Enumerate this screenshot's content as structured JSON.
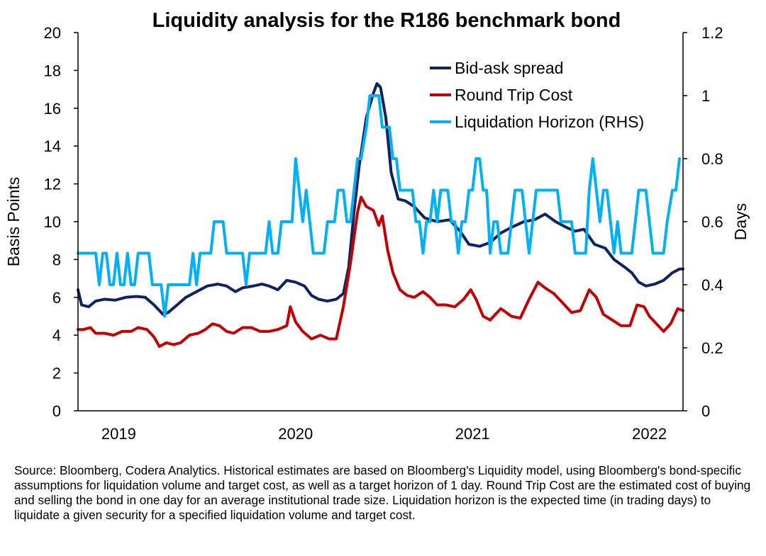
{
  "chart_data": {
    "type": "line",
    "title": "Liquidity analysis for the R186 benchmark bond",
    "ylabel": "Basis Points",
    "y2label": "Days",
    "ylim": [
      0,
      20
    ],
    "y2lim": [
      0,
      1.2
    ],
    "yticks": [
      "0",
      "2",
      "4",
      "6",
      "8",
      "10",
      "12",
      "14",
      "16",
      "18",
      "20"
    ],
    "y2ticks": [
      "0",
      "0.2",
      "0.4",
      "0.6",
      "0.8",
      "1",
      "1.2"
    ],
    "xlim": [
      2018.77,
      2022.19
    ],
    "xticks": [
      {
        "label": "2019",
        "x": 2019.0
      },
      {
        "label": "2020",
        "x": 2020.0
      },
      {
        "label": "2021",
        "x": 2021.0
      },
      {
        "label": "2022",
        "x": 2022.0
      }
    ],
    "grid": false,
    "legend_position": "top-right",
    "series": [
      {
        "name": "Bid-ask spread",
        "axis": "left",
        "color": "#0d2361",
        "points": [
          [
            2018.77,
            6.4
          ],
          [
            2018.79,
            5.6
          ],
          [
            2018.83,
            5.5
          ],
          [
            2018.87,
            5.8
          ],
          [
            2018.92,
            5.9
          ],
          [
            2018.98,
            5.85
          ],
          [
            2019.04,
            6.0
          ],
          [
            2019.1,
            6.05
          ],
          [
            2019.15,
            6.0
          ],
          [
            2019.2,
            5.6
          ],
          [
            2019.25,
            5.1
          ],
          [
            2019.28,
            5.2
          ],
          [
            2019.33,
            5.6
          ],
          [
            2019.38,
            6.0
          ],
          [
            2019.44,
            6.3
          ],
          [
            2019.5,
            6.6
          ],
          [
            2019.56,
            6.7
          ],
          [
            2019.61,
            6.6
          ],
          [
            2019.66,
            6.3
          ],
          [
            2019.7,
            6.5
          ],
          [
            2019.76,
            6.6
          ],
          [
            2019.81,
            6.7
          ],
          [
            2019.85,
            6.6
          ],
          [
            2019.9,
            6.4
          ],
          [
            2019.95,
            6.9
          ],
          [
            2020.0,
            6.8
          ],
          [
            2020.05,
            6.6
          ],
          [
            2020.09,
            6.1
          ],
          [
            2020.13,
            5.9
          ],
          [
            2020.18,
            5.8
          ],
          [
            2020.23,
            5.9
          ],
          [
            2020.27,
            6.2
          ],
          [
            2020.3,
            7.6
          ],
          [
            2020.33,
            10.5
          ],
          [
            2020.36,
            13.0
          ],
          [
            2020.4,
            15.5
          ],
          [
            2020.44,
            16.8
          ],
          [
            2020.46,
            17.3
          ],
          [
            2020.48,
            17.1
          ],
          [
            2020.51,
            15.5
          ],
          [
            2020.54,
            12.6
          ],
          [
            2020.58,
            11.2
          ],
          [
            2020.62,
            11.1
          ],
          [
            2020.67,
            10.8
          ],
          [
            2020.73,
            10.2
          ],
          [
            2020.8,
            10.0
          ],
          [
            2020.87,
            10.1
          ],
          [
            2020.93,
            9.5
          ],
          [
            2020.98,
            8.8
          ],
          [
            2021.04,
            8.7
          ],
          [
            2021.1,
            8.9
          ],
          [
            2021.16,
            9.4
          ],
          [
            2021.22,
            9.7
          ],
          [
            2021.29,
            10.0
          ],
          [
            2021.35,
            10.1
          ],
          [
            2021.41,
            10.4
          ],
          [
            2021.47,
            10.0
          ],
          [
            2021.53,
            9.7
          ],
          [
            2021.58,
            9.5
          ],
          [
            2021.63,
            9.6
          ],
          [
            2021.69,
            8.8
          ],
          [
            2021.75,
            8.6
          ],
          [
            2021.8,
            8.0
          ],
          [
            2021.86,
            7.6
          ],
          [
            2021.9,
            7.3
          ],
          [
            2021.94,
            6.8
          ],
          [
            2021.98,
            6.6
          ],
          [
            2022.03,
            6.7
          ],
          [
            2022.08,
            6.9
          ],
          [
            2022.13,
            7.3
          ],
          [
            2022.17,
            7.5
          ],
          [
            2022.19,
            7.5
          ]
        ]
      },
      {
        "name": "Round Trip Cost",
        "axis": "left",
        "color": "#c00000",
        "points": [
          [
            2018.77,
            4.3
          ],
          [
            2018.8,
            4.3
          ],
          [
            2018.84,
            4.4
          ],
          [
            2018.87,
            4.1
          ],
          [
            2018.92,
            4.1
          ],
          [
            2018.97,
            4.0
          ],
          [
            2019.02,
            4.2
          ],
          [
            2019.07,
            4.2
          ],
          [
            2019.11,
            4.4
          ],
          [
            2019.16,
            4.3
          ],
          [
            2019.2,
            3.9
          ],
          [
            2019.23,
            3.4
          ],
          [
            2019.27,
            3.6
          ],
          [
            2019.31,
            3.5
          ],
          [
            2019.35,
            3.6
          ],
          [
            2019.4,
            4.0
          ],
          [
            2019.45,
            4.1
          ],
          [
            2019.49,
            4.3
          ],
          [
            2019.53,
            4.6
          ],
          [
            2019.57,
            4.5
          ],
          [
            2019.61,
            4.2
          ],
          [
            2019.65,
            4.1
          ],
          [
            2019.7,
            4.4
          ],
          [
            2019.75,
            4.4
          ],
          [
            2019.8,
            4.2
          ],
          [
            2019.85,
            4.2
          ],
          [
            2019.9,
            4.3
          ],
          [
            2019.95,
            4.5
          ],
          [
            2019.97,
            5.5
          ],
          [
            2020.0,
            4.7
          ],
          [
            2020.04,
            4.2
          ],
          [
            2020.09,
            3.8
          ],
          [
            2020.14,
            4.0
          ],
          [
            2020.19,
            3.8
          ],
          [
            2020.23,
            3.8
          ],
          [
            2020.27,
            5.5
          ],
          [
            2020.31,
            7.8
          ],
          [
            2020.35,
            10.5
          ],
          [
            2020.37,
            11.3
          ],
          [
            2020.4,
            10.8
          ],
          [
            2020.44,
            10.6
          ],
          [
            2020.47,
            9.8
          ],
          [
            2020.49,
            10.3
          ],
          [
            2020.52,
            8.5
          ],
          [
            2020.55,
            7.3
          ],
          [
            2020.59,
            6.4
          ],
          [
            2020.63,
            6.1
          ],
          [
            2020.67,
            6.0
          ],
          [
            2020.72,
            6.3
          ],
          [
            2020.76,
            6.0
          ],
          [
            2020.8,
            5.6
          ],
          [
            2020.85,
            5.6
          ],
          [
            2020.9,
            5.5
          ],
          [
            2020.95,
            5.9
          ],
          [
            2020.99,
            6.4
          ],
          [
            2021.02,
            5.9
          ],
          [
            2021.06,
            5.0
          ],
          [
            2021.1,
            4.8
          ],
          [
            2021.16,
            5.4
          ],
          [
            2021.22,
            5.0
          ],
          [
            2021.27,
            4.9
          ],
          [
            2021.32,
            5.9
          ],
          [
            2021.37,
            6.8
          ],
          [
            2021.41,
            6.5
          ],
          [
            2021.46,
            6.2
          ],
          [
            2021.51,
            5.7
          ],
          [
            2021.56,
            5.2
          ],
          [
            2021.61,
            5.3
          ],
          [
            2021.66,
            6.4
          ],
          [
            2021.7,
            6.0
          ],
          [
            2021.74,
            5.1
          ],
          [
            2021.79,
            4.8
          ],
          [
            2021.84,
            4.5
          ],
          [
            2021.89,
            4.5
          ],
          [
            2021.93,
            5.6
          ],
          [
            2021.97,
            5.5
          ],
          [
            2022.0,
            5.0
          ],
          [
            2022.04,
            4.6
          ],
          [
            2022.08,
            4.2
          ],
          [
            2022.12,
            4.6
          ],
          [
            2022.16,
            5.4
          ],
          [
            2022.19,
            5.3
          ]
        ]
      },
      {
        "name": "Liquidation Horizon (RHS)",
        "axis": "right",
        "color": "#00b0f0",
        "points": [
          [
            2018.77,
            0.5
          ],
          [
            2018.87,
            0.5
          ],
          [
            2018.89,
            0.4
          ],
          [
            2018.91,
            0.5
          ],
          [
            2018.93,
            0.5
          ],
          [
            2018.95,
            0.4
          ],
          [
            2018.97,
            0.4
          ],
          [
            2018.99,
            0.5
          ],
          [
            2019.01,
            0.4
          ],
          [
            2019.03,
            0.4
          ],
          [
            2019.05,
            0.5
          ],
          [
            2019.07,
            0.4
          ],
          [
            2019.09,
            0.4
          ],
          [
            2019.11,
            0.5
          ],
          [
            2019.17,
            0.5
          ],
          [
            2019.19,
            0.4
          ],
          [
            2019.22,
            0.4
          ],
          [
            2019.24,
            0.4
          ],
          [
            2019.26,
            0.3
          ],
          [
            2019.28,
            0.4
          ],
          [
            2019.4,
            0.4
          ],
          [
            2019.42,
            0.5
          ],
          [
            2019.44,
            0.4
          ],
          [
            2019.46,
            0.5
          ],
          [
            2019.52,
            0.5
          ],
          [
            2019.54,
            0.6
          ],
          [
            2019.59,
            0.6
          ],
          [
            2019.61,
            0.5
          ],
          [
            2019.7,
            0.5
          ],
          [
            2019.72,
            0.4
          ],
          [
            2019.74,
            0.5
          ],
          [
            2019.83,
            0.5
          ],
          [
            2019.85,
            0.6
          ],
          [
            2019.87,
            0.5
          ],
          [
            2019.9,
            0.5
          ],
          [
            2019.92,
            0.6
          ],
          [
            2019.98,
            0.6
          ],
          [
            2020.0,
            0.8
          ],
          [
            2020.02,
            0.7
          ],
          [
            2020.04,
            0.6
          ],
          [
            2020.06,
            0.7
          ],
          [
            2020.08,
            0.6
          ],
          [
            2020.1,
            0.5
          ],
          [
            2020.16,
            0.5
          ],
          [
            2020.18,
            0.6
          ],
          [
            2020.22,
            0.6
          ],
          [
            2020.24,
            0.7
          ],
          [
            2020.27,
            0.7
          ],
          [
            2020.29,
            0.6
          ],
          [
            2020.31,
            0.6
          ],
          [
            2020.33,
            0.7
          ],
          [
            2020.35,
            0.8
          ],
          [
            2020.37,
            0.8
          ],
          [
            2020.4,
            0.9
          ],
          [
            2020.42,
            1.0
          ],
          [
            2020.47,
            1.0
          ],
          [
            2020.49,
            0.9
          ],
          [
            2020.53,
            0.9
          ],
          [
            2020.55,
            0.8
          ],
          [
            2020.57,
            0.8
          ],
          [
            2020.59,
            0.7
          ],
          [
            2020.66,
            0.7
          ],
          [
            2020.68,
            0.6
          ],
          [
            2020.7,
            0.6
          ],
          [
            2020.72,
            0.5
          ],
          [
            2020.74,
            0.6
          ],
          [
            2020.76,
            0.6
          ],
          [
            2020.78,
            0.7
          ],
          [
            2020.8,
            0.6
          ],
          [
            2020.82,
            0.7
          ],
          [
            2020.86,
            0.7
          ],
          [
            2020.88,
            0.6
          ],
          [
            2020.9,
            0.6
          ],
          [
            2020.92,
            0.5
          ],
          [
            2020.94,
            0.6
          ],
          [
            2020.96,
            0.6
          ],
          [
            2020.98,
            0.7
          ],
          [
            2021.0,
            0.7
          ],
          [
            2021.02,
            0.8
          ],
          [
            2021.04,
            0.8
          ],
          [
            2021.06,
            0.7
          ],
          [
            2021.08,
            0.7
          ],
          [
            2021.1,
            0.5
          ],
          [
            2021.12,
            0.6
          ],
          [
            2021.14,
            0.6
          ],
          [
            2021.16,
            0.5
          ],
          [
            2021.2,
            0.5
          ],
          [
            2021.22,
            0.6
          ],
          [
            2021.24,
            0.7
          ],
          [
            2021.28,
            0.7
          ],
          [
            2021.3,
            0.6
          ],
          [
            2021.32,
            0.5
          ],
          [
            2021.34,
            0.6
          ],
          [
            2021.36,
            0.7
          ],
          [
            2021.48,
            0.7
          ],
          [
            2021.5,
            0.6
          ],
          [
            2021.56,
            0.6
          ],
          [
            2021.58,
            0.5
          ],
          [
            2021.64,
            0.5
          ],
          [
            2021.66,
            0.7
          ],
          [
            2021.68,
            0.8
          ],
          [
            2021.7,
            0.7
          ],
          [
            2021.72,
            0.6
          ],
          [
            2021.74,
            0.7
          ],
          [
            2021.76,
            0.7
          ],
          [
            2021.78,
            0.6
          ],
          [
            2021.8,
            0.5
          ],
          [
            2021.82,
            0.6
          ],
          [
            2021.84,
            0.5
          ],
          [
            2021.9,
            0.5
          ],
          [
            2021.92,
            0.6
          ],
          [
            2021.94,
            0.7
          ],
          [
            2021.98,
            0.7
          ],
          [
            2022.0,
            0.6
          ],
          [
            2022.02,
            0.5
          ],
          [
            2022.08,
            0.5
          ],
          [
            2022.1,
            0.6
          ],
          [
            2022.13,
            0.7
          ],
          [
            2022.15,
            0.7
          ],
          [
            2022.17,
            0.8
          ]
        ]
      }
    ],
    "source_note": "Source: Bloomberg, Codera Analytics. Historical estimates are based on Bloomberg's Liquidity model, using Bloomberg's bond-specific assumptions for liquidation volume and target cost, as well as a target horizon of 1 day. Round Trip Cost are the estimated cost of buying and selling the bond in one day for an average institutional trade size. Liquidation horizon is the expected time (in trading days) to liquidate a given security for a specified liquidation volume and target cost."
  }
}
